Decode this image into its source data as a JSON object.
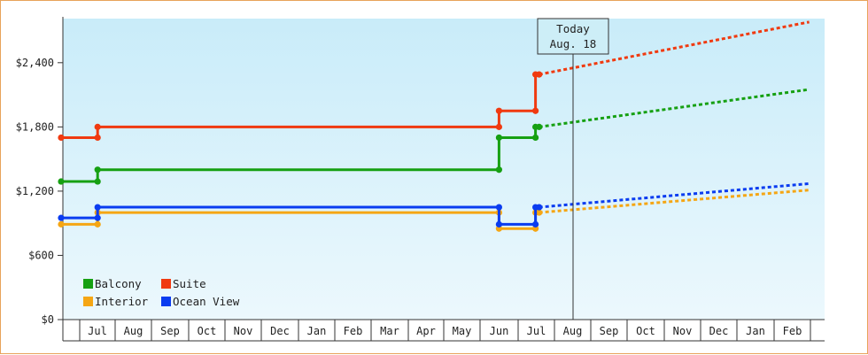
{
  "chart_data": {
    "type": "line",
    "today_label": [
      "Today",
      "Aug. 18"
    ],
    "y_ticks": [
      "$0",
      "$600",
      "$1,200",
      "$1,800",
      "$2,400"
    ],
    "y_tick_values": [
      0,
      600,
      1200,
      1800,
      2400
    ],
    "ylim": [
      0,
      2800
    ],
    "months": [
      "Jul",
      "Aug",
      "Sep",
      "Oct",
      "Nov",
      "Dec",
      "Jan",
      "Feb",
      "Mar",
      "Apr",
      "May",
      "Jun",
      "Jul",
      "Aug",
      "Sep",
      "Oct",
      "Nov",
      "Dec",
      "Jan",
      "Feb"
    ],
    "grid": false,
    "legend_placement": "bottom-left",
    "series": [
      {
        "name": "Balcony",
        "color": "#16a012",
        "history": [
          [
            0,
            1290
          ],
          [
            1,
            1290
          ],
          [
            1,
            1400
          ],
          [
            12,
            1400
          ],
          [
            12,
            1700
          ],
          [
            13,
            1700
          ],
          [
            13,
            1800
          ],
          [
            13.1,
            1800
          ]
        ],
        "forecast": [
          [
            13.1,
            1800
          ],
          [
            20.5,
            2150
          ]
        ]
      },
      {
        "name": "Suite",
        "color": "#f03a10",
        "history": [
          [
            0,
            1700
          ],
          [
            1,
            1700
          ],
          [
            1,
            1800
          ],
          [
            12,
            1800
          ],
          [
            12,
            1950
          ],
          [
            13,
            1950
          ],
          [
            13,
            2290
          ],
          [
            13.1,
            2290
          ]
        ],
        "forecast": [
          [
            13.1,
            2290
          ],
          [
            20.5,
            2780
          ]
        ]
      },
      {
        "name": "Interior",
        "color": "#f5a614",
        "history": [
          [
            0,
            890
          ],
          [
            1,
            890
          ],
          [
            1,
            1000
          ],
          [
            12,
            1000
          ],
          [
            12,
            850
          ],
          [
            13,
            850
          ],
          [
            13,
            1000
          ],
          [
            13.1,
            1000
          ]
        ],
        "forecast": [
          [
            13.1,
            1000
          ],
          [
            20.5,
            1210
          ]
        ]
      },
      {
        "name": "Ocean View",
        "color": "#0a3cf0",
        "history": [
          [
            0,
            950
          ],
          [
            1,
            950
          ],
          [
            1,
            1050
          ],
          [
            12,
            1050
          ],
          [
            12,
            890
          ],
          [
            13,
            890
          ],
          [
            13,
            1050
          ],
          [
            13.1,
            1050
          ]
        ],
        "forecast": [
          [
            13.1,
            1050
          ],
          [
            20.5,
            1270
          ]
        ]
      }
    ]
  }
}
